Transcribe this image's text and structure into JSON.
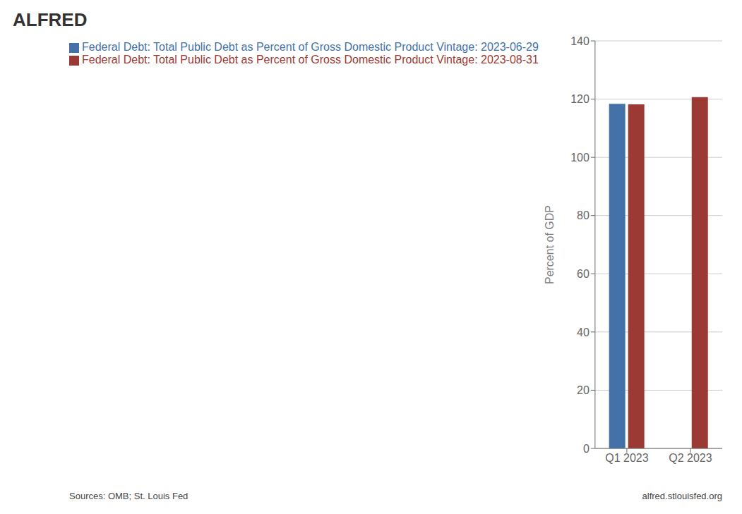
{
  "chart_data": {
    "type": "bar",
    "title": "ALFRED",
    "categories": [
      "Q1 2023",
      "Q2 2023"
    ],
    "series": [
      {
        "name": "Federal Debt: Total Public Debt as Percent of Gross Domestic Product Vintage: 2023-06-29",
        "color": "#4472a8",
        "values": [
          118.4,
          null
        ]
      },
      {
        "name": "Federal Debt: Total Public Debt as Percent of Gross Domestic Product Vintage: 2023-08-31",
        "color": "#9b3a34",
        "values": [
          118.2,
          120.7
        ]
      }
    ],
    "ylabel": "Percent of GDP",
    "ylim": [
      0,
      140
    ],
    "yticks": [
      0,
      20,
      40,
      60,
      80,
      100,
      120,
      140
    ],
    "grid": true,
    "legend": "upper left",
    "annotations": [
      "Sources: OMB; St. Louis Fed",
      "alfred.stlouisfed.org"
    ]
  }
}
